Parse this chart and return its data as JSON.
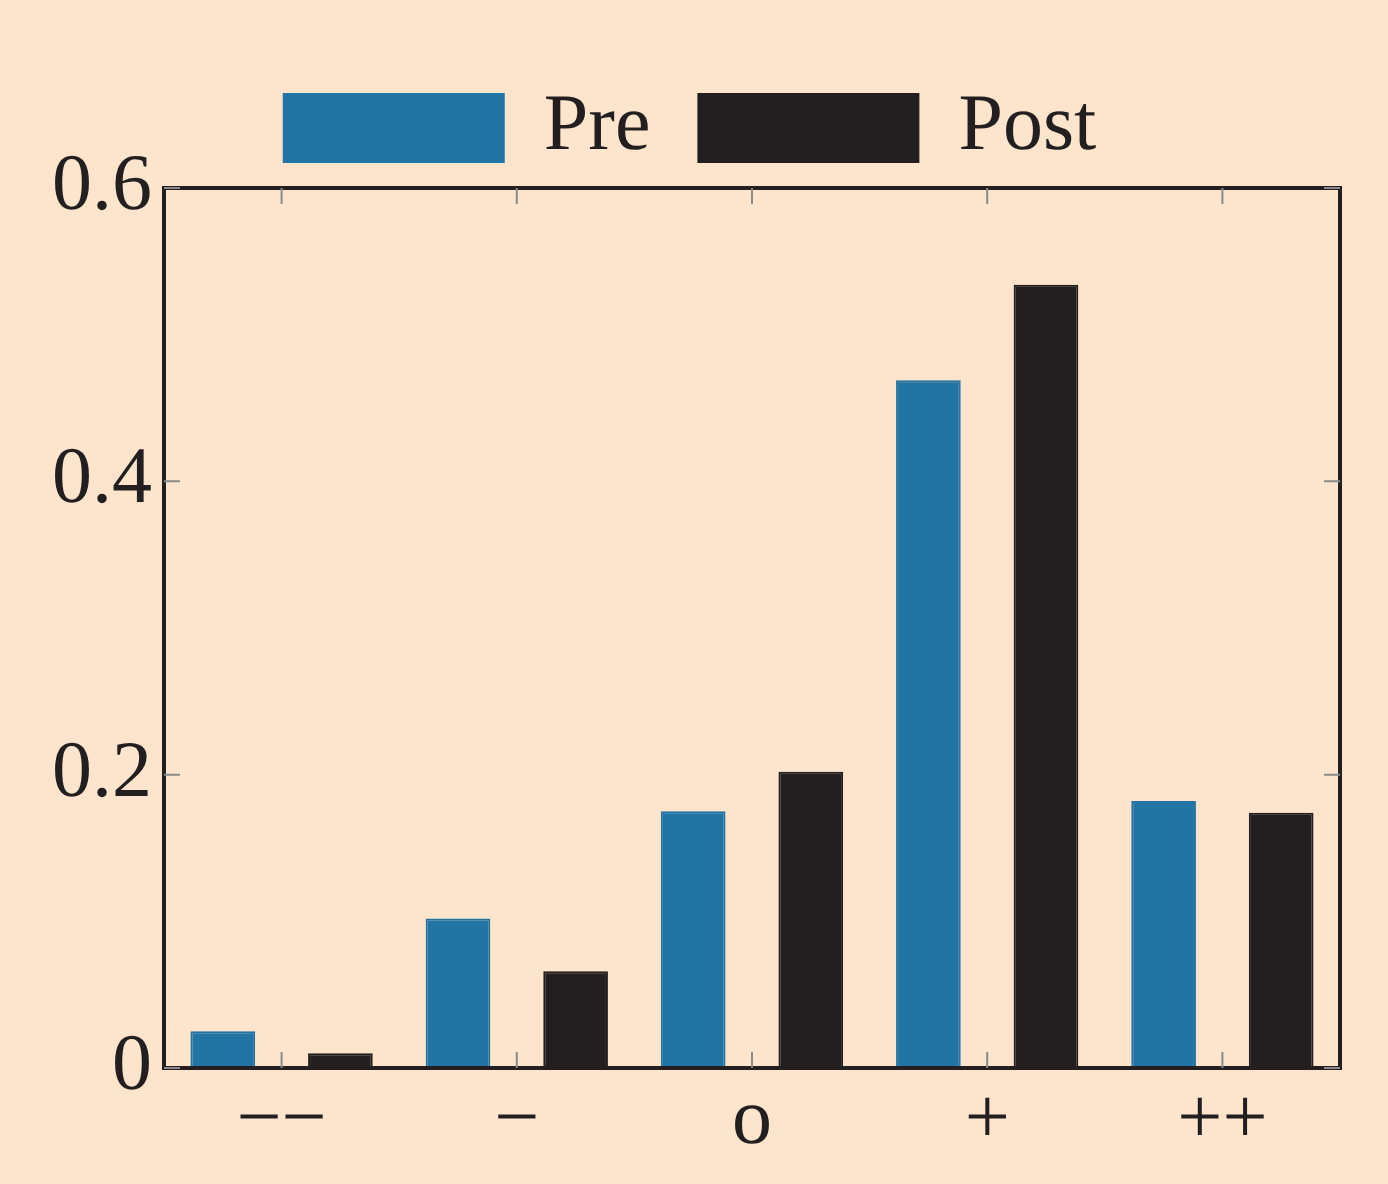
{
  "chart_data": {
    "type": "bar",
    "categories": [
      "−−",
      "−",
      "o",
      "+",
      "++"
    ],
    "series": [
      {
        "name": "Pre",
        "color": "#2274a5",
        "values": [
          0.025,
          0.102,
          0.175,
          0.469,
          0.182
        ]
      },
      {
        "name": "Post",
        "color": "#231f20",
        "values": [
          0.01,
          0.066,
          0.202,
          0.534,
          0.174
        ]
      }
    ],
    "ylim": [
      0,
      0.6
    ],
    "yticks": [
      0,
      0.2,
      0.4,
      0.6
    ],
    "grid": false,
    "legend": "top"
  }
}
